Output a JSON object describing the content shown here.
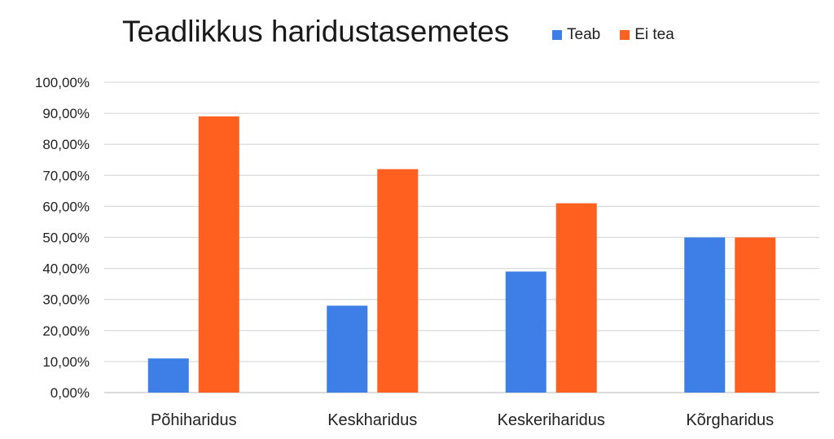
{
  "chart_data": {
    "type": "bar",
    "title": "Teadlikkus haridustasemetes",
    "categories": [
      "Põhiharidus",
      "Keskharidus",
      "Keskeriharidus",
      "Kõrgharidus"
    ],
    "series": [
      {
        "name": "Teab",
        "color": "#3d7fe6",
        "values": [
          11.0,
          28.0,
          39.0,
          50.0
        ]
      },
      {
        "name": "Ei tea",
        "color": "#ff5f1f",
        "values": [
          89.0,
          72.0,
          61.0,
          50.0
        ]
      }
    ],
    "ylim": [
      0,
      100
    ],
    "yticks": [
      "0,00%",
      "10,00%",
      "20,00%",
      "30,00%",
      "40,00%",
      "50,00%",
      "60,00%",
      "70,00%",
      "80,00%",
      "90,00%",
      "100,00%"
    ],
    "grid": true,
    "legend_position": "top-right"
  }
}
